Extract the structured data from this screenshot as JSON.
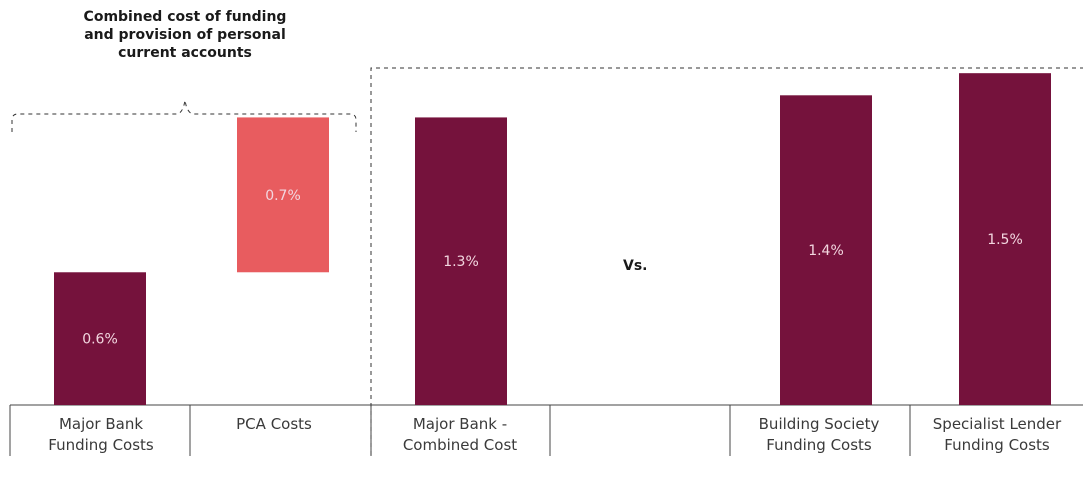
{
  "chart_data": {
    "type": "bar",
    "subtype": "waterfall-comparison",
    "ylim": [
      0,
      1.65
    ],
    "grid": false,
    "colors": {
      "primary": "#75123c",
      "accent": "#e85c5f",
      "bar_label": "#f2d6df"
    },
    "categories": [
      "Major Bank\nFunding Costs",
      "PCA Costs",
      "Major Bank -\nCombined Cost",
      "",
      "Building Society\nFunding Costs",
      "Specialist Lender\nFunding Costs"
    ],
    "bars": [
      {
        "category_index": 0,
        "base": 0,
        "value": 0.6,
        "label": "0.6%",
        "color": "#75123c"
      },
      {
        "category_index": 1,
        "base": 0.6,
        "value": 0.7,
        "label": "0.7%",
        "color": "#e85c5f"
      },
      {
        "category_index": 2,
        "base": 0,
        "value": 1.3,
        "label": "1.3%",
        "color": "#75123c"
      },
      {
        "category_index": 4,
        "base": 0,
        "value": 1.4,
        "label": "1.4%",
        "color": "#75123c"
      },
      {
        "category_index": 5,
        "base": 0,
        "value": 1.5,
        "label": "1.5%",
        "color": "#75123c"
      }
    ],
    "annotations": {
      "bracket_title": "Combined cost of funding and provision of personal current accounts",
      "vs_label": "Vs."
    }
  }
}
